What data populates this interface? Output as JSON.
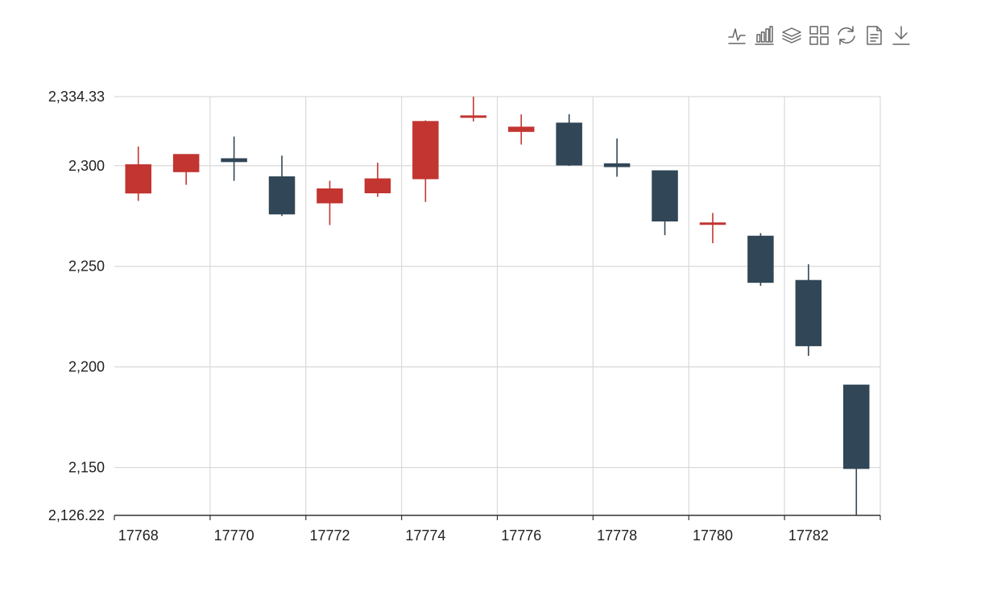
{
  "toolbox": {
    "items": [
      {
        "name": "line-chart-icon"
      },
      {
        "name": "bar-chart-icon"
      },
      {
        "name": "stack-icon"
      },
      {
        "name": "tiled-icon"
      },
      {
        "name": "refresh-icon"
      },
      {
        "name": "data-view-icon"
      },
      {
        "name": "download-icon"
      }
    ]
  },
  "colors": {
    "up": "#c23531",
    "down": "#314656",
    "grid": "#d9d9d9",
    "axis": "#333333",
    "text": "#222222"
  },
  "chart_data": {
    "type": "candlestick",
    "title": "",
    "xlabel": "",
    "ylabel": "",
    "ylim": [
      2126.22,
      2334.33
    ],
    "grid": true,
    "y_ticks": [
      2126.22,
      2150,
      2200,
      2250,
      2300,
      2334.33
    ],
    "y_tick_labels": [
      "2,126.22",
      "2,150",
      "2,200",
      "2,250",
      "2,300",
      "2,334.33"
    ],
    "x_tick_labels": [
      "17768",
      "17770",
      "17772",
      "17774",
      "17776",
      "17778",
      "17780",
      "17782"
    ],
    "categories": [
      "17768",
      "17769",
      "17770",
      "17771",
      "17772",
      "17773",
      "17774",
      "17775",
      "17776",
      "17777",
      "17778",
      "17779",
      "17780",
      "17781",
      "17782",
      "17783"
    ],
    "series": [
      {
        "candles": [
          {
            "x": "17768",
            "open": 2286.4,
            "close": 2300.5,
            "low": 2282.5,
            "high": 2309.5
          },
          {
            "x": "17769",
            "open": 2297.0,
            "close": 2305.6,
            "low": 2290.5,
            "high": 2305.6
          },
          {
            "x": "17770",
            "open": 2303.5,
            "close": 2302.0,
            "low": 2292.5,
            "high": 2314.5
          },
          {
            "x": "17771",
            "open": 2294.5,
            "close": 2276.0,
            "low": 2275.0,
            "high": 2305.0
          },
          {
            "x": "17772",
            "open": 2281.5,
            "close": 2288.5,
            "low": 2270.5,
            "high": 2292.5
          },
          {
            "x": "17773",
            "open": 2286.5,
            "close": 2293.5,
            "low": 2284.5,
            "high": 2301.5
          },
          {
            "x": "17774",
            "open": 2293.5,
            "close": 2322.0,
            "low": 2282.0,
            "high": 2322.5
          },
          {
            "x": "17775",
            "open": 2324.0,
            "close": 2324.8,
            "low": 2322.0,
            "high": 2334.3
          },
          {
            "x": "17776",
            "open": 2317.0,
            "close": 2319.2,
            "low": 2310.5,
            "high": 2325.5
          },
          {
            "x": "17777",
            "open": 2321.2,
            "close": 2300.3,
            "low": 2299.9,
            "high": 2325.6
          },
          {
            "x": "17778",
            "open": 2301.0,
            "close": 2299.5,
            "low": 2294.5,
            "high": 2313.5
          },
          {
            "x": "17779",
            "open": 2297.5,
            "close": 2272.5,
            "low": 2265.5,
            "high": 2297.5
          },
          {
            "x": "17780",
            "open": 2271.0,
            "close": 2271.6,
            "low": 2261.5,
            "high": 2276.5
          },
          {
            "x": "17781",
            "open": 2265.0,
            "close": 2242.0,
            "low": 2240.3,
            "high": 2266.5
          },
          {
            "x": "17782",
            "open": 2243.0,
            "close": 2210.5,
            "low": 2205.5,
            "high": 2251.0
          },
          {
            "x": "17783",
            "open": 2191.0,
            "close": 2149.5,
            "low": 2126.22,
            "high": 2191.0
          }
        ]
      }
    ]
  }
}
